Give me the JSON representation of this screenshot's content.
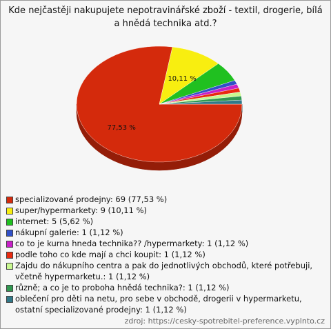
{
  "chart_data": {
    "type": "pie",
    "title": "Kde nejčastěji nakupujete nepotravinářské zboží - textil, drogerie, bílá a hnědá technika atd.?",
    "categories": [
      "specializované prodejny: 69 (77,53 %)",
      "super/hypermarkety: 9 (10,11 %)",
      "internet: 5 (5,62 %)",
      "nákupní galerie: 1 (1,12 %)",
      "co to je kurna hneda technika?? /hypermarkety: 1 (1,12 %)",
      "podle toho co kde mají a chci koupit: 1 (1,12 %)",
      "Zajdu do nákupního centra a pak do jednotlivých obchodů, které potřebuji, včetně hypermarketu.: 1 (1,12 %)",
      "různě; a co je to proboha hnědá technika?: 1 (1,12 %)",
      "oblečení pro děti na netu, pro sebe v obchodě, drogerii v hypermarketu, ostatní specializované prodejny: 1 (1,12 %)"
    ],
    "values": [
      77.53,
      10.11,
      5.62,
      1.12,
      1.12,
      1.12,
      1.12,
      1.12,
      1.12
    ],
    "value_labels": [
      "77,53 %",
      "10,11 %",
      null,
      null,
      null,
      null,
      null,
      null,
      null
    ],
    "colors": [
      "#d42a0c",
      "#f8ee10",
      "#20c020",
      "#3050c8",
      "#c820c8",
      "#e82a10",
      "#c8f890",
      "#309850",
      "#307888"
    ],
    "source": "zdroj: https://cesky-spotrebitel-preference.vyplnto.cz"
  }
}
